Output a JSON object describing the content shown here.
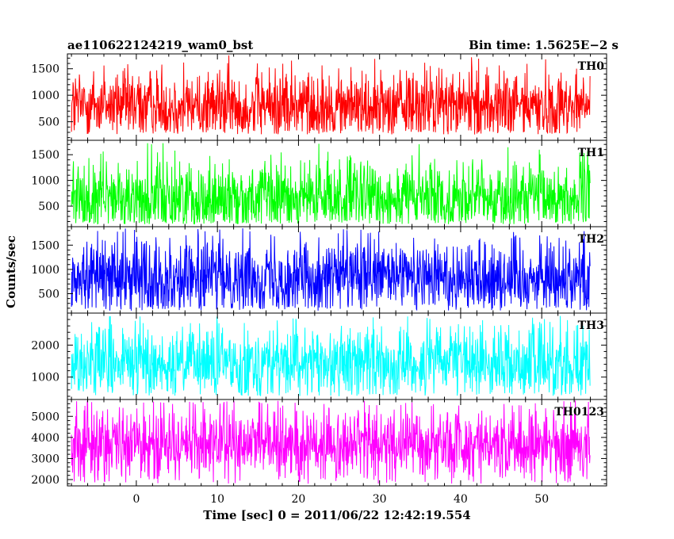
{
  "chart_data": {
    "type": "line",
    "title_left": "ae110622124219_wam0_bst",
    "title_right": "Bin time: 1.5625E−2 s",
    "xlabel": "Time [sec] 0 = 2011/06/22 12:42:19.554",
    "ylabel": "Counts/sec",
    "xlim": [
      -8.5,
      58
    ],
    "x_ticks": [
      0,
      10,
      20,
      30,
      40,
      50
    ],
    "data_x_range": [
      -8,
      56
    ],
    "panels": [
      {
        "label": "TH0",
        "color": "#ff0000",
        "ylim": [
          150,
          1780
        ],
        "y_ticks": [
          500,
          1000,
          1500
        ],
        "mean": 800,
        "min": 260,
        "max": 1770
      },
      {
        "label": "TH1",
        "color": "#00ff00",
        "ylim": [
          100,
          1780
        ],
        "y_ticks": [
          500,
          1000,
          1500
        ],
        "mean": 650,
        "min": 150,
        "max": 1750
      },
      {
        "label": "TH2",
        "color": "#0000ff",
        "ylim": [
          100,
          1880
        ],
        "y_ticks": [
          500,
          1000,
          1500
        ],
        "mean": 850,
        "min": 150,
        "max": 1870
      },
      {
        "label": "TH3",
        "color": "#00ffff",
        "ylim": [
          300,
          3000
        ],
        "y_ticks": [
          1000,
          2000
        ],
        "mean": 1450,
        "min": 400,
        "max": 2950
      },
      {
        "label": "TH0123",
        "color": "#ff00ff",
        "ylim": [
          1700,
          5800
        ],
        "y_ticks": [
          2000,
          3000,
          4000,
          5000
        ],
        "mean": 3700,
        "min": 1800,
        "max": 5750
      }
    ]
  }
}
